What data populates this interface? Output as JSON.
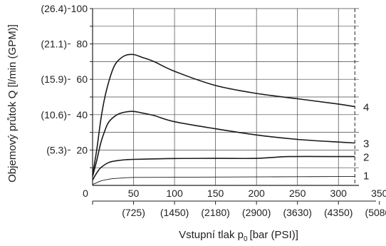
{
  "chart_data": {
    "type": "line",
    "xlabel": "Vstupní tlak p",
    "xlabel_subscript": "0",
    "xlabel_unit": "[bar (PSI)]",
    "ylabel": "Objemový průtok Q [l/min (GPM)]",
    "xlim": [
      0,
      325
    ],
    "ylim": [
      0,
      100
    ],
    "x_ticks": [
      0,
      50,
      100,
      150,
      200,
      250,
      300,
      350
    ],
    "x_tick_labels": [
      "0",
      "50",
      "100",
      "150",
      "200",
      "250",
      "300",
      "350"
    ],
    "x_secondary_tick_labels": [
      "(725)",
      "(1450)",
      "(2180)",
      "(2900)",
      "(3630)",
      "(4350)",
      "(5080)"
    ],
    "y_ticks": [
      20,
      40,
      60,
      80,
      100
    ],
    "y_tick_labels": [
      "20",
      "40",
      "60",
      "80",
      "100"
    ],
    "y_secondary_tick_labels": [
      "(5.3)",
      "(10.6)",
      "(15.9)",
      "(21.1)",
      "(26.4)"
    ],
    "grid": true,
    "reference_line_x": 320,
    "series": [
      {
        "name": "1",
        "x": [
          0,
          5,
          10,
          20,
          30,
          50,
          100,
          150,
          200,
          250,
          300,
          320
        ],
        "y": [
          0.5,
          1.5,
          2.5,
          3.5,
          4,
          4.5,
          4.6,
          4.7,
          4.8,
          4.9,
          5,
          5
        ]
      },
      {
        "name": "2",
        "x": [
          0,
          5,
          10,
          20,
          30,
          40,
          50,
          75,
          100,
          150,
          200,
          240,
          300,
          320
        ],
        "y": [
          3,
          7,
          10,
          13,
          14,
          14.5,
          14.7,
          15,
          15.2,
          15.3,
          15.3,
          16.3,
          16.3,
          16.3
        ]
      },
      {
        "name": "3",
        "x": [
          0,
          5,
          10,
          15,
          20,
          30,
          40,
          50,
          60,
          75,
          100,
          150,
          200,
          250,
          300,
          320
        ],
        "y": [
          5,
          14,
          24,
          31,
          36,
          40,
          41.5,
          41.8,
          41,
          39.5,
          36,
          32,
          28.5,
          26,
          24.5,
          24
        ]
      },
      {
        "name": "4",
        "x": [
          0,
          5,
          10,
          15,
          20,
          25,
          30,
          40,
          50,
          60,
          75,
          100,
          150,
          200,
          250,
          300,
          320
        ],
        "y": [
          6,
          20,
          37,
          50,
          59,
          66,
          70,
          73.5,
          74,
          72.5,
          70,
          64.5,
          56.5,
          52,
          49,
          46,
          44.5
        ]
      }
    ]
  }
}
